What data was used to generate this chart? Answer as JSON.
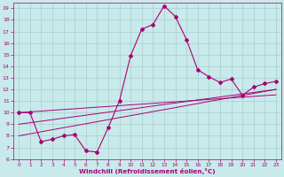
{
  "xlabel": "Windchill (Refroidissement éolien,°C)",
  "bg_color": "#c8eaea",
  "line_color": "#aa0077",
  "grid_color": "#aacccc",
  "x_data": [
    0,
    1,
    2,
    3,
    4,
    5,
    6,
    7,
    8,
    9,
    10,
    11,
    12,
    13,
    14,
    15,
    16,
    17,
    18,
    19,
    20,
    21,
    22,
    23
  ],
  "y_main": [
    10.0,
    10.0,
    7.5,
    7.7,
    8.0,
    8.1,
    6.7,
    6.6,
    8.7,
    11.0,
    14.9,
    17.2,
    17.6,
    19.2,
    18.3,
    16.3,
    13.7,
    13.1,
    12.6,
    12.9,
    11.5,
    12.2,
    12.5,
    12.7
  ],
  "y_line1": [
    10.0,
    10.07,
    10.13,
    10.2,
    10.27,
    10.33,
    10.4,
    10.47,
    10.53,
    10.6,
    10.67,
    10.73,
    10.8,
    10.87,
    10.93,
    11.0,
    11.07,
    11.13,
    11.2,
    11.27,
    11.33,
    11.4,
    11.47,
    11.53
  ],
  "y_line2": [
    9.0,
    9.13,
    9.26,
    9.39,
    9.52,
    9.65,
    9.78,
    9.91,
    10.04,
    10.17,
    10.3,
    10.43,
    10.57,
    10.7,
    10.83,
    10.96,
    11.09,
    11.22,
    11.35,
    11.48,
    11.61,
    11.74,
    11.87,
    12.0
  ],
  "y_line3": [
    8.0,
    8.17,
    8.35,
    8.52,
    8.7,
    8.87,
    9.04,
    9.22,
    9.39,
    9.57,
    9.74,
    9.91,
    10.09,
    10.26,
    10.43,
    10.61,
    10.78,
    10.96,
    11.13,
    11.3,
    11.48,
    11.65,
    11.83,
    12.0
  ],
  "xlim": [
    -0.5,
    23.5
  ],
  "ylim": [
    6,
    19.5
  ],
  "xticks": [
    0,
    1,
    2,
    3,
    4,
    5,
    6,
    7,
    8,
    9,
    10,
    11,
    12,
    13,
    14,
    15,
    16,
    17,
    18,
    19,
    20,
    21,
    22,
    23
  ],
  "yticks": [
    6,
    7,
    8,
    9,
    10,
    11,
    12,
    13,
    14,
    15,
    16,
    17,
    18,
    19
  ]
}
